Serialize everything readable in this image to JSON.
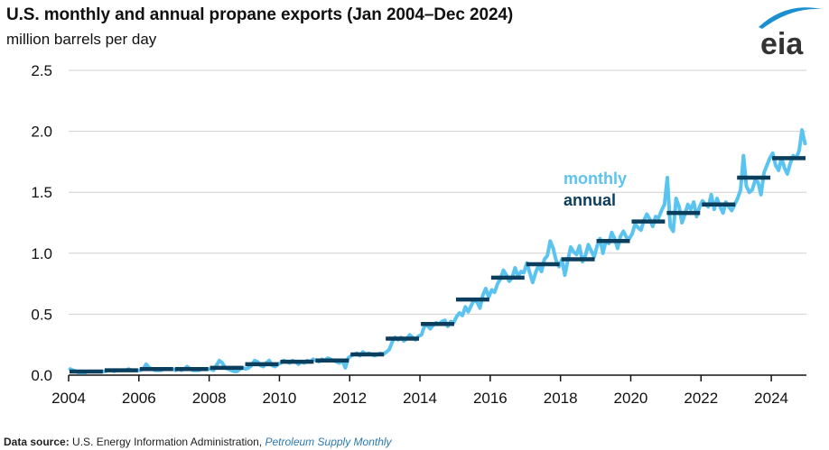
{
  "header": {
    "title": "U.S. monthly and annual propane exports (Jan 2004–Dec 2024)",
    "subtitle": "million barrels per day",
    "logo_text": "eia"
  },
  "footer": {
    "source_label": "Data source:",
    "source_text": "U.S. Energy Information Administration,",
    "source_publication": "Petroleum Supply Monthly"
  },
  "chart_data": {
    "type": "line",
    "title": "U.S. monthly and annual propane exports (Jan 2004–Dec 2024)",
    "ylabel": "million barrels per day",
    "xlabel": "",
    "xlim": [
      2004,
      2025
    ],
    "ylim": [
      0,
      2.5
    ],
    "yticks": [
      "0.0",
      "0.5",
      "1.0",
      "1.5",
      "2.0",
      "2.5"
    ],
    "xticks": [
      "2004",
      "2006",
      "2008",
      "2010",
      "2012",
      "2014",
      "2016",
      "2018",
      "2020",
      "2022",
      "2024"
    ],
    "grid": "horizontal",
    "legend": [
      {
        "name": "monthly",
        "color": "#5bc3ef",
        "placement": "center-right"
      },
      {
        "name": "annual",
        "color": "#0b3d5c",
        "placement": "center-right"
      }
    ],
    "series": [
      {
        "name": "annual",
        "style": "step",
        "color": "#0b3d5c",
        "years": [
          2004,
          2005,
          2006,
          2007,
          2008,
          2009,
          2010,
          2011,
          2012,
          2013,
          2014,
          2015,
          2016,
          2017,
          2018,
          2019,
          2020,
          2021,
          2022,
          2023,
          2024
        ],
        "values": [
          0.03,
          0.04,
          0.05,
          0.05,
          0.06,
          0.09,
          0.11,
          0.12,
          0.17,
          0.3,
          0.42,
          0.62,
          0.8,
          0.91,
          0.95,
          1.1,
          1.26,
          1.33,
          1.4,
          1.62,
          1.78
        ]
      },
      {
        "name": "monthly",
        "style": "line",
        "color": "#5bc3ef",
        "start": "2004-01",
        "values": [
          0.05,
          0.04,
          0.03,
          0.02,
          0.02,
          0.02,
          0.03,
          0.03,
          0.03,
          0.03,
          0.03,
          0.03,
          0.03,
          0.04,
          0.04,
          0.03,
          0.04,
          0.04,
          0.04,
          0.04,
          0.05,
          0.04,
          0.04,
          0.04,
          0.04,
          0.05,
          0.09,
          0.06,
          0.05,
          0.04,
          0.04,
          0.04,
          0.05,
          0.05,
          0.05,
          0.05,
          0.04,
          0.05,
          0.04,
          0.05,
          0.07,
          0.05,
          0.04,
          0.04,
          0.04,
          0.05,
          0.05,
          0.05,
          0.05,
          0.04,
          0.08,
          0.12,
          0.1,
          0.06,
          0.05,
          0.04,
          0.03,
          0.03,
          0.05,
          0.06,
          0.05,
          0.06,
          0.08,
          0.12,
          0.11,
          0.08,
          0.07,
          0.1,
          0.12,
          0.08,
          0.07,
          0.09,
          0.1,
          0.12,
          0.11,
          0.1,
          0.12,
          0.11,
          0.09,
          0.11,
          0.1,
          0.12,
          0.11,
          0.13,
          0.12,
          0.11,
          0.13,
          0.12,
          0.14,
          0.13,
          0.12,
          0.11,
          0.1,
          0.12,
          0.06,
          0.14,
          0.16,
          0.17,
          0.18,
          0.16,
          0.19,
          0.17,
          0.18,
          0.17,
          0.16,
          0.17,
          0.18,
          0.17,
          0.19,
          0.21,
          0.27,
          0.31,
          0.29,
          0.31,
          0.28,
          0.3,
          0.33,
          0.31,
          0.29,
          0.32,
          0.33,
          0.4,
          0.41,
          0.38,
          0.41,
          0.43,
          0.42,
          0.44,
          0.45,
          0.4,
          0.44,
          0.43,
          0.48,
          0.51,
          0.49,
          0.56,
          0.52,
          0.57,
          0.62,
          0.6,
          0.55,
          0.66,
          0.71,
          0.64,
          0.7,
          0.68,
          0.75,
          0.79,
          0.86,
          0.82,
          0.77,
          0.8,
          0.88,
          0.81,
          0.85,
          0.84,
          0.92,
          0.84,
          0.76,
          0.84,
          0.9,
          0.85,
          0.95,
          0.98,
          1.1,
          1.04,
          0.94,
          0.89,
          0.95,
          0.82,
          0.94,
          1.05,
          1.01,
          0.99,
          1.06,
          0.93,
          0.98,
          1.07,
          1.02,
          0.97,
          1.06,
          1.12,
          1.0,
          1.1,
          1.08,
          1.17,
          1.12,
          1.04,
          1.14,
          1.18,
          1.13,
          1.12,
          1.16,
          1.24,
          1.21,
          1.19,
          1.27,
          1.32,
          1.28,
          1.22,
          1.3,
          1.29,
          1.35,
          1.4,
          1.62,
          1.22,
          1.18,
          1.45,
          1.38,
          1.25,
          1.32,
          1.4,
          1.36,
          1.42,
          1.3,
          1.38,
          1.43,
          1.4,
          1.38,
          1.48,
          1.36,
          1.45,
          1.38,
          1.33,
          1.42,
          1.38,
          1.35,
          1.4,
          1.45,
          1.52,
          1.8,
          1.55,
          1.5,
          1.52,
          1.6,
          1.58,
          1.48,
          1.66,
          1.72,
          1.78,
          1.82,
          1.72,
          1.68,
          1.78,
          1.7,
          1.65,
          1.74,
          1.8,
          1.78,
          1.84,
          2.01,
          1.9
        ]
      }
    ]
  }
}
